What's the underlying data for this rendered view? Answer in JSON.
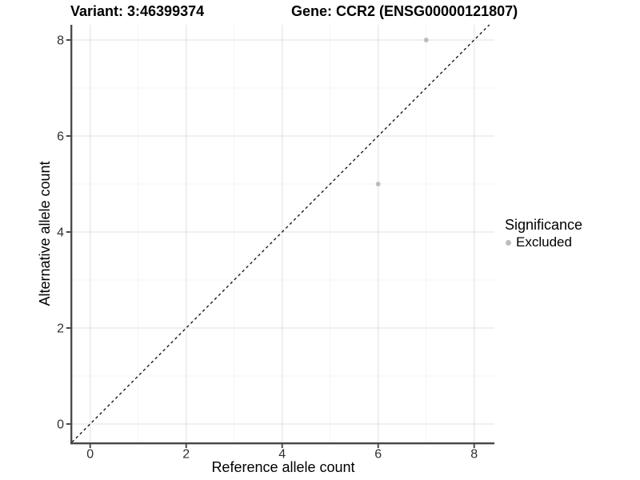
{
  "titles": {
    "variant": "Variant: 3:46399374",
    "gene": "Gene: CCR2 (ENSG00000121807)"
  },
  "chart_data": {
    "type": "scatter",
    "title_left": "Variant: 3:46399374",
    "title_right": "Gene: CCR2 (ENSG00000121807)",
    "xlabel": "Reference allele count",
    "ylabel": "Alternative allele count",
    "xlim": [
      -0.4,
      8.42
    ],
    "ylim": [
      -0.38,
      8.32
    ],
    "x_major_ticks": [
      0,
      2,
      4,
      6,
      8
    ],
    "y_major_ticks": [
      0,
      2,
      4,
      6,
      8
    ],
    "x_minor_ticks": [
      1,
      3,
      5,
      7
    ],
    "y_minor_ticks": [
      1,
      3,
      5,
      7
    ],
    "grid": true,
    "points": [
      {
        "x": 6,
        "y": 5,
        "series": "Excluded"
      },
      {
        "x": 7,
        "y": 8,
        "series": "Excluded"
      }
    ],
    "identity_line": {
      "style": "dashed",
      "slope": 1,
      "intercept": 0
    },
    "legend": {
      "title": "Significance",
      "position": "right",
      "entries": [
        {
          "label": "Excluded",
          "color": "#bdbdbd"
        }
      ]
    },
    "colors": {
      "point": "#bdbdbd",
      "grid_major": "#e8e8e8",
      "grid_minor": "#f4f4f4",
      "axis": "#474747",
      "tick_label": "#303030",
      "axis_title": "#000000",
      "dashed_line": "#1a1a1a"
    }
  }
}
